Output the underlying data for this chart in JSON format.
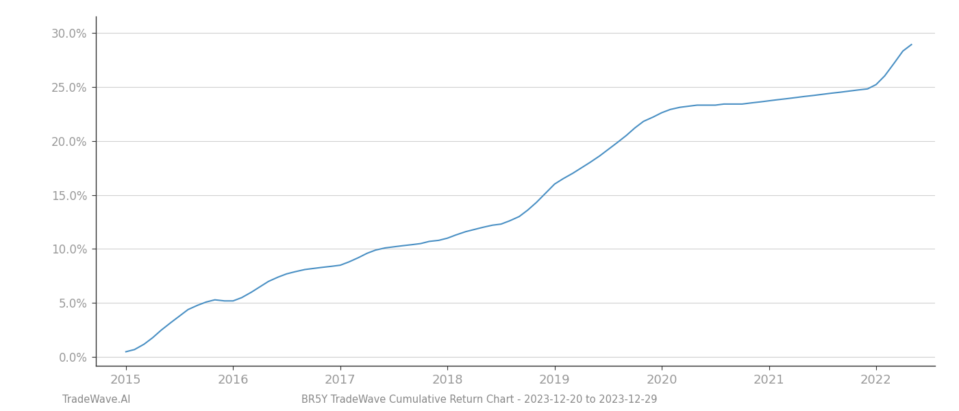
{
  "x_years": [
    2015.0,
    2015.08,
    2015.17,
    2015.25,
    2015.33,
    2015.42,
    2015.5,
    2015.58,
    2015.67,
    2015.75,
    2015.83,
    2015.92,
    2016.0,
    2016.08,
    2016.17,
    2016.25,
    2016.33,
    2016.42,
    2016.5,
    2016.58,
    2016.67,
    2016.75,
    2016.83,
    2016.92,
    2017.0,
    2017.08,
    2017.17,
    2017.25,
    2017.33,
    2017.42,
    2017.5,
    2017.58,
    2017.67,
    2017.75,
    2017.83,
    2017.92,
    2018.0,
    2018.08,
    2018.17,
    2018.25,
    2018.33,
    2018.42,
    2018.5,
    2018.58,
    2018.67,
    2018.75,
    2018.83,
    2018.92,
    2019.0,
    2019.08,
    2019.17,
    2019.25,
    2019.33,
    2019.42,
    2019.5,
    2019.58,
    2019.67,
    2019.75,
    2019.83,
    2019.92,
    2020.0,
    2020.08,
    2020.17,
    2020.25,
    2020.33,
    2020.42,
    2020.5,
    2020.58,
    2020.67,
    2020.75,
    2020.83,
    2020.92,
    2021.0,
    2021.08,
    2021.17,
    2021.25,
    2021.33,
    2021.42,
    2021.5,
    2021.58,
    2021.67,
    2021.75,
    2021.83,
    2021.92,
    2022.0,
    2022.08,
    2022.17,
    2022.25,
    2022.33
  ],
  "y_values": [
    0.005,
    0.007,
    0.012,
    0.018,
    0.025,
    0.032,
    0.038,
    0.044,
    0.048,
    0.051,
    0.053,
    0.052,
    0.052,
    0.055,
    0.06,
    0.065,
    0.07,
    0.074,
    0.077,
    0.079,
    0.081,
    0.082,
    0.083,
    0.084,
    0.085,
    0.088,
    0.092,
    0.096,
    0.099,
    0.101,
    0.102,
    0.103,
    0.104,
    0.105,
    0.107,
    0.108,
    0.11,
    0.113,
    0.116,
    0.118,
    0.12,
    0.122,
    0.123,
    0.126,
    0.13,
    0.136,
    0.143,
    0.152,
    0.16,
    0.165,
    0.17,
    0.175,
    0.18,
    0.186,
    0.192,
    0.198,
    0.205,
    0.212,
    0.218,
    0.222,
    0.226,
    0.229,
    0.231,
    0.232,
    0.233,
    0.233,
    0.233,
    0.234,
    0.234,
    0.234,
    0.235,
    0.236,
    0.237,
    0.238,
    0.239,
    0.24,
    0.241,
    0.242,
    0.243,
    0.244,
    0.245,
    0.246,
    0.247,
    0.248,
    0.252,
    0.26,
    0.272,
    0.283,
    0.289
  ],
  "line_color": "#4a90c4",
  "background_color": "#ffffff",
  "grid_color": "#d0d0d0",
  "ytick_labels": [
    "0.0%",
    "5.0%",
    "10.0%",
    "15.0%",
    "20.0%",
    "25.0%",
    "30.0%"
  ],
  "ytick_values": [
    0.0,
    0.05,
    0.1,
    0.15,
    0.2,
    0.25,
    0.3
  ],
  "xtick_labels": [
    "2015",
    "2016",
    "2017",
    "2018",
    "2019",
    "2020",
    "2021",
    "2022"
  ],
  "xtick_values": [
    2015,
    2016,
    2017,
    2018,
    2019,
    2020,
    2021,
    2022
  ],
  "ylim": [
    -0.008,
    0.315
  ],
  "xlim": [
    2014.72,
    2022.55
  ],
  "footer_left": "TradeWave.AI",
  "footer_right": "BR5Y TradeWave Cumulative Return Chart - 2023-12-20 to 2023-12-29",
  "tick_color": "#999999",
  "spine_color": "#333333",
  "footer_color": "#888888",
  "line_width": 1.5,
  "ytick_fontsize": 12,
  "xtick_fontsize": 13,
  "footer_fontsize": 10.5
}
